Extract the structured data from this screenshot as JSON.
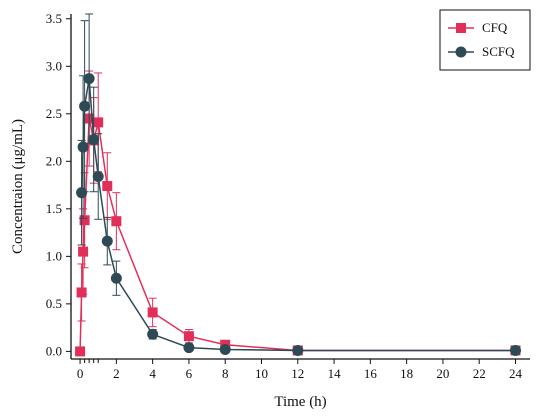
{
  "chart_data": {
    "type": "line",
    "title": "",
    "xlabel": "Time (h)",
    "ylabel": "Concentraion (μg/mL)",
    "xlim": [
      -0.5,
      24.8
    ],
    "ylim": [
      -0.08,
      3.55
    ],
    "x_ticks": [
      0,
      2,
      4,
      6,
      8,
      10,
      12,
      14,
      16,
      18,
      20,
      22,
      24
    ],
    "x_minor_ticks": [
      0.25,
      0.5,
      0.75,
      1
    ],
    "y_ticks": [
      0.0,
      0.5,
      1.0,
      1.5,
      2.0,
      2.5,
      3.0,
      3.5
    ],
    "x_tick_labels": [
      "0",
      "2",
      "4",
      "6",
      "8",
      "10",
      "12",
      "14",
      "16",
      "18",
      "20",
      "22",
      "24"
    ],
    "y_tick_labels": [
      "0.0",
      "0.5",
      "1.0",
      "1.5",
      "2.0",
      "2.5",
      "3.0",
      "3.5"
    ],
    "grid": false,
    "legend_position": "top-right",
    "series": [
      {
        "name": "CFQ",
        "color": "#e0305a",
        "marker": "square",
        "x": [
          0,
          0.083,
          0.167,
          0.25,
          0.5,
          0.75,
          1,
          1.5,
          2,
          4,
          6,
          8,
          12,
          24
        ],
        "y": [
          0.0,
          0.62,
          1.05,
          1.38,
          2.45,
          2.22,
          2.41,
          1.74,
          1.37,
          0.41,
          0.16,
          0.07,
          0.01,
          0.01
        ],
        "error": [
          0.0,
          0.3,
          0.45,
          0.5,
          0.5,
          0.45,
          0.52,
          0.35,
          0.3,
          0.15,
          0.07,
          0.03,
          0.01,
          0.01
        ]
      },
      {
        "name": "SCFQ",
        "color": "#2e4a55",
        "marker": "circle",
        "x": [
          0.083,
          0.167,
          0.25,
          0.5,
          0.75,
          1,
          1.5,
          2,
          4,
          6,
          8,
          12,
          24
        ],
        "y": [
          1.67,
          2.15,
          2.58,
          2.87,
          2.23,
          1.84,
          1.16,
          0.77,
          0.18,
          0.04,
          0.02,
          0.01,
          0.01
        ],
        "error": [
          0.55,
          0.75,
          0.9,
          0.68,
          0.55,
          0.45,
          0.25,
          0.18,
          0.05,
          0.01,
          0.01,
          0.0,
          0.0
        ]
      }
    ]
  }
}
